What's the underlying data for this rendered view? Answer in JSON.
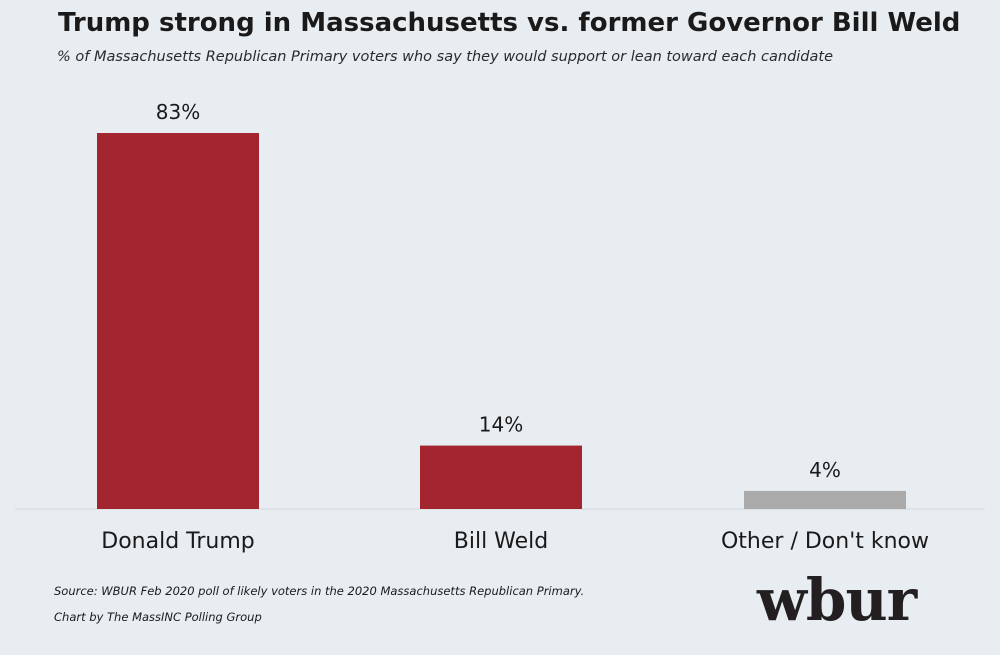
{
  "chart_data": {
    "type": "bar",
    "title": "Trump strong in Massachusetts vs. former Governor Bill Weld",
    "subtitle": "% of Massachusetts Republican Primary voters who say they would support or lean toward each candidate",
    "categories": [
      "Donald Trump",
      "Bill Weld",
      "Other / Don't know"
    ],
    "values": [
      83,
      14,
      4
    ],
    "value_labels": [
      "83%",
      "14%",
      "4%"
    ],
    "colors": [
      "#a32530",
      "#a32530",
      "#aaaaaa"
    ],
    "ylim": [
      0,
      100
    ],
    "grid": false,
    "legend": "none"
  },
  "footer": {
    "source": "Source: WBUR Feb 2020 poll of likely voters in the 2020 Massachusetts Republican Primary.",
    "credit": "Chart by The MassINC Polling Group"
  },
  "logo": {
    "text": "wbur"
  }
}
